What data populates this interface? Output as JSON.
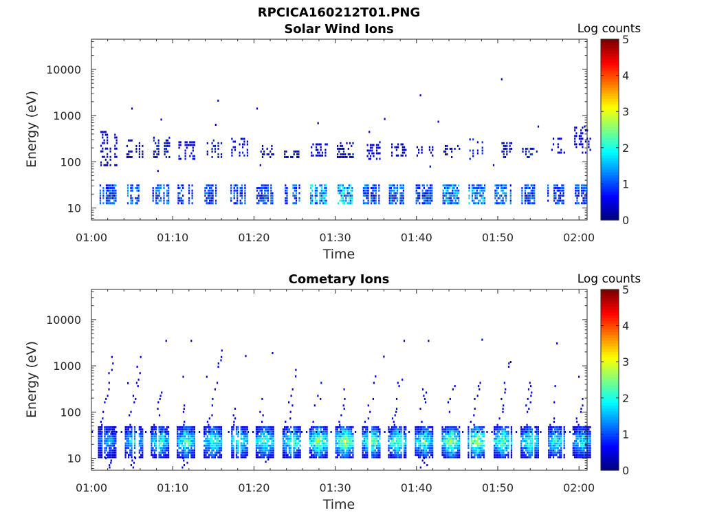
{
  "figure": {
    "title": "RPCICA160212T01.PNG"
  },
  "chart_data": [
    {
      "type": "heatmap",
      "title": "Solar Wind Ions",
      "xlabel": "Time",
      "ylabel": "Energy (eV)",
      "x_ticks": [
        "01:00",
        "01:10",
        "01:20",
        "01:30",
        "01:40",
        "01:50",
        "02:00"
      ],
      "x_range_minutes": [
        0,
        61
      ],
      "y_scale": "log",
      "y_ticks": [
        10,
        100,
        1000,
        10000
      ],
      "y_tick_labels": [
        "10",
        "100",
        "1000",
        "10000"
      ],
      "y_range": [
        5.5,
        45000
      ],
      "colorbar": {
        "label": "Log counts",
        "min": 0,
        "max": 5,
        "ticks": [
          "0",
          "1",
          "2",
          "3",
          "4",
          "5"
        ],
        "colormap": "jet"
      },
      "bursts": [
        {
          "t": 2.0,
          "low_level": 1.1,
          "high_level": 0.4,
          "high_emin": 80,
          "high_emax": 450
        },
        {
          "t": 5.2,
          "low_level": 1.2,
          "high_level": 0.5,
          "high_emin": 120,
          "high_emax": 280
        },
        {
          "t": 8.5,
          "low_level": 1.1,
          "high_level": 0.7,
          "high_emin": 120,
          "high_emax": 320
        },
        {
          "t": 11.6,
          "low_level": 1.0,
          "high_level": 0.6,
          "high_emin": 110,
          "high_emax": 260
        },
        {
          "t": 14.9,
          "low_level": 1.0,
          "high_level": 0.6,
          "high_emin": 120,
          "high_emax": 280
        },
        {
          "t": 18.1,
          "low_level": 1.0,
          "high_level": 0.6,
          "high_emin": 130,
          "high_emax": 300
        },
        {
          "t": 21.3,
          "low_level": 1.0,
          "high_level": 0.5,
          "high_emin": 120,
          "high_emax": 230
        },
        {
          "t": 24.6,
          "low_level": 1.1,
          "high_level": 0.4,
          "high_emin": 120,
          "high_emax": 180
        },
        {
          "t": 27.9,
          "low_level": 1.6,
          "high_level": 0.5,
          "high_emin": 130,
          "high_emax": 230
        },
        {
          "t": 31.1,
          "low_level": 1.8,
          "high_level": 0.5,
          "high_emin": 120,
          "high_emax": 260
        },
        {
          "t": 34.4,
          "low_level": 1.1,
          "high_level": 0.5,
          "high_emin": 110,
          "high_emax": 280
        },
        {
          "t": 37.6,
          "low_level": 1.2,
          "high_level": 0.4,
          "high_emin": 130,
          "high_emax": 250
        },
        {
          "t": 40.9,
          "low_level": 1.0,
          "high_level": 0.4,
          "high_emin": 130,
          "high_emax": 200
        },
        {
          "t": 44.2,
          "low_level": 1.4,
          "high_level": 0.4,
          "high_emin": 120,
          "high_emax": 230
        },
        {
          "t": 47.4,
          "low_level": 1.4,
          "high_level": 0.7,
          "high_emin": 110,
          "high_emax": 300
        },
        {
          "t": 50.6,
          "low_level": 1.2,
          "high_level": 0.6,
          "high_emin": 120,
          "high_emax": 250
        },
        {
          "t": 53.9,
          "low_level": 1.1,
          "high_level": 0.7,
          "high_emin": 120,
          "high_emax": 200
        },
        {
          "t": 57.1,
          "low_level": 1.0,
          "high_level": 0.5,
          "high_emin": 150,
          "high_emax": 300
        },
        {
          "t": 60.3,
          "low_level": 1.0,
          "high_level": 0.4,
          "high_emin": 150,
          "high_emax": 550
        }
      ],
      "scatter": [
        {
          "t": 4.9,
          "e": 1350
        },
        {
          "t": 8.5,
          "e": 780
        },
        {
          "t": 15.5,
          "e": 2000
        },
        {
          "t": 15.2,
          "e": 600
        },
        {
          "t": 20.3,
          "e": 1350
        },
        {
          "t": 27.8,
          "e": 650
        },
        {
          "t": 34.1,
          "e": 420
        },
        {
          "t": 36.0,
          "e": 800
        },
        {
          "t": 40.4,
          "e": 2600
        },
        {
          "t": 42.6,
          "e": 700
        },
        {
          "t": 50.4,
          "e": 5800
        },
        {
          "t": 54.9,
          "e": 550
        },
        {
          "t": 60.6,
          "e": 550
        },
        {
          "t": 8.1,
          "e": 60
        },
        {
          "t": 41.6,
          "e": 75
        },
        {
          "t": 49.4,
          "e": 80
        },
        {
          "t": 1.9,
          "e": 90
        },
        {
          "t": 20.7,
          "e": 80
        }
      ]
    },
    {
      "type": "heatmap",
      "title": "Cometary Ions",
      "xlabel": "Time",
      "ylabel": "Energy (eV)",
      "x_ticks": [
        "01:00",
        "01:10",
        "01:20",
        "01:30",
        "01:40",
        "01:50",
        "02:00"
      ],
      "x_range_minutes": [
        0,
        61
      ],
      "y_scale": "log",
      "y_ticks": [
        10,
        100,
        1000,
        10000
      ],
      "y_tick_labels": [
        "10",
        "100",
        "1000",
        "10000"
      ],
      "y_range": [
        5.5,
        45000
      ],
      "colorbar": {
        "label": "Log counts",
        "min": 0,
        "max": 5,
        "ticks": [
          "0",
          "1",
          "2",
          "3",
          "4",
          "5"
        ],
        "colormap": "jet"
      },
      "baseline_energy": 35,
      "bursts": [
        {
          "t": 1.9,
          "peak": 1.6,
          "emin": 6,
          "emax": 45,
          "tail_emax": 2200
        },
        {
          "t": 5.2,
          "peak": 2.0,
          "emin": 6,
          "emax": 45,
          "tail_emax": 1600
        },
        {
          "t": 8.4,
          "peak": 2.2,
          "emin": 10,
          "emax": 45,
          "tail_emax": 280
        },
        {
          "t": 11.6,
          "peak": 2.4,
          "emin": 6,
          "emax": 45,
          "tail_emax": 230
        },
        {
          "t": 14.9,
          "peak": 2.4,
          "emin": 10,
          "emax": 45,
          "tail_emax": 2500
        },
        {
          "t": 18.1,
          "peak": 2.4,
          "emin": 10,
          "emax": 45,
          "tail_emax": 200
        },
        {
          "t": 21.3,
          "peak": 2.4,
          "emin": 8,
          "emax": 45,
          "tail_emax": 200
        },
        {
          "t": 24.6,
          "peak": 2.4,
          "emin": 10,
          "emax": 45,
          "tail_emax": 1150
        },
        {
          "t": 27.9,
          "peak": 2.8,
          "emin": 10,
          "emax": 45,
          "tail_emax": 550
        },
        {
          "t": 31.1,
          "peak": 2.9,
          "emin": 10,
          "emax": 45,
          "tail_emax": 300
        },
        {
          "t": 34.4,
          "peak": 2.6,
          "emin": 10,
          "emax": 45,
          "tail_emax": 650
        },
        {
          "t": 37.6,
          "peak": 2.5,
          "emin": 10,
          "emax": 45,
          "tail_emax": 550
        },
        {
          "t": 40.9,
          "peak": 2.4,
          "emin": 6,
          "emax": 45,
          "tail_emax": 500
        },
        {
          "t": 44.2,
          "peak": 2.8,
          "emin": 10,
          "emax": 45,
          "tail_emax": 400
        },
        {
          "t": 47.4,
          "peak": 2.9,
          "emin": 10,
          "emax": 45,
          "tail_emax": 1100
        },
        {
          "t": 50.6,
          "peak": 2.6,
          "emin": 10,
          "emax": 45,
          "tail_emax": 1100
        },
        {
          "t": 53.9,
          "peak": 2.4,
          "emin": 10,
          "emax": 45,
          "tail_emax": 550
        },
        {
          "t": 57.1,
          "peak": 2.2,
          "emin": 10,
          "emax": 45,
          "tail_emax": 400
        },
        {
          "t": 60.3,
          "peak": 2.0,
          "emin": 10,
          "emax": 45,
          "tail_emax": 250
        }
      ],
      "scatter": [
        {
          "t": 9.1,
          "e": 3300
        },
        {
          "t": 12.2,
          "e": 3300
        },
        {
          "t": 38.4,
          "e": 3300
        },
        {
          "t": 41.4,
          "e": 3300
        },
        {
          "t": 48.0,
          "e": 3500
        },
        {
          "t": 57.2,
          "e": 2900
        },
        {
          "t": 18.9,
          "e": 1550
        },
        {
          "t": 22.2,
          "e": 1800
        },
        {
          "t": 35.9,
          "e": 1500
        },
        {
          "t": 51.5,
          "e": 1150
        },
        {
          "t": 11.2,
          "e": 550
        },
        {
          "t": 59.9,
          "e": 550
        },
        {
          "t": 4.4,
          "e": 400
        },
        {
          "t": 14.1,
          "e": 550
        }
      ]
    }
  ]
}
